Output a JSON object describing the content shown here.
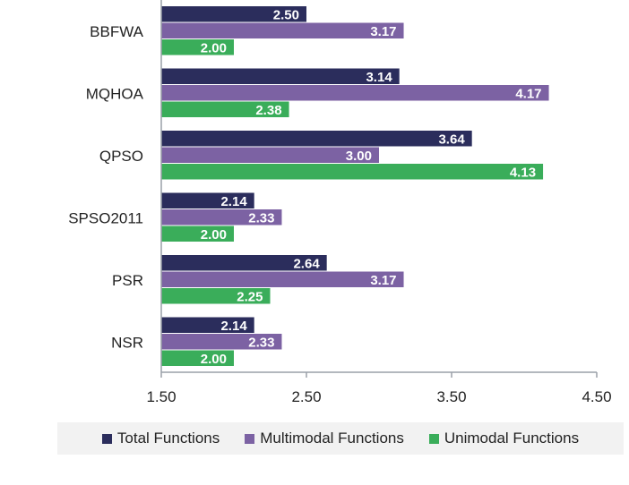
{
  "chart_data": {
    "type": "bar",
    "orientation": "horizontal",
    "categories": [
      "BBFWA",
      "MQHOA",
      "QPSO",
      "SPSO2011",
      "PSR",
      "NSR"
    ],
    "series": [
      {
        "name": "Total Functions",
        "color": "#2b2d5c",
        "values": [
          2.5,
          3.14,
          3.64,
          2.14,
          2.64,
          2.14
        ],
        "labels": [
          "2.50",
          "3.14",
          "3.64",
          "2.14",
          "2.64",
          "2.14"
        ]
      },
      {
        "name": "Multimodal Functions",
        "color": "#7c62a3",
        "values": [
          3.17,
          4.17,
          3.0,
          2.33,
          3.17,
          2.33
        ],
        "labels": [
          "3.17",
          "4.17",
          "3.00",
          "2.33",
          "3.17",
          "2.33"
        ]
      },
      {
        "name": "Unimodal Functions",
        "color": "#3aad5a",
        "values": [
          2.0,
          2.38,
          4.13,
          2.0,
          2.25,
          2.0
        ],
        "labels": [
          "2.00",
          "2.38",
          "4.13",
          "2.00",
          "2.25",
          "2.00"
        ]
      }
    ],
    "xlim": [
      1.5,
      4.5
    ],
    "xticks": [
      "1.50",
      "2.50",
      "3.50",
      "4.50"
    ],
    "grid": false,
    "legend_position": "bottom"
  }
}
